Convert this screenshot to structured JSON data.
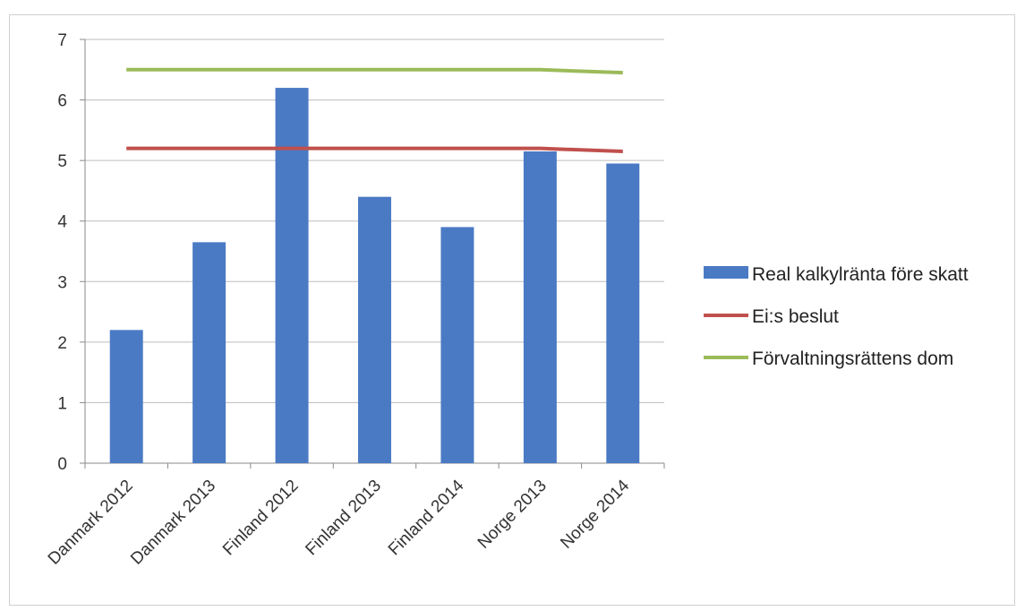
{
  "chart_data": {
    "type": "bar",
    "categories": [
      "Danmark 2012",
      "Danmark 2013",
      "Finland 2012",
      "Finland 2013",
      "Finland 2014",
      "Norge 2013",
      "Norge 2014"
    ],
    "series": [
      {
        "name": "Real kalkylränta före skatt",
        "type": "bar",
        "values": [
          2.2,
          3.65,
          6.2,
          4.4,
          3.9,
          5.15,
          4.95
        ],
        "color": "#4a7ac4"
      },
      {
        "name": "Ei:s beslut",
        "type": "line",
        "values": [
          5.2,
          5.2,
          5.2,
          5.2,
          5.2,
          5.2,
          5.15
        ],
        "color": "#c0504d"
      },
      {
        "name": "Förvaltningsrättens dom",
        "type": "line",
        "values": [
          6.5,
          6.5,
          6.5,
          6.5,
          6.5,
          6.5,
          6.45
        ],
        "color": "#9bbb59"
      }
    ],
    "yticks": [
      "0",
      "1",
      "2",
      "3",
      "4",
      "5",
      "6",
      "7"
    ],
    "ylim": [
      0,
      7
    ],
    "grid": true,
    "legend_position": "right"
  }
}
